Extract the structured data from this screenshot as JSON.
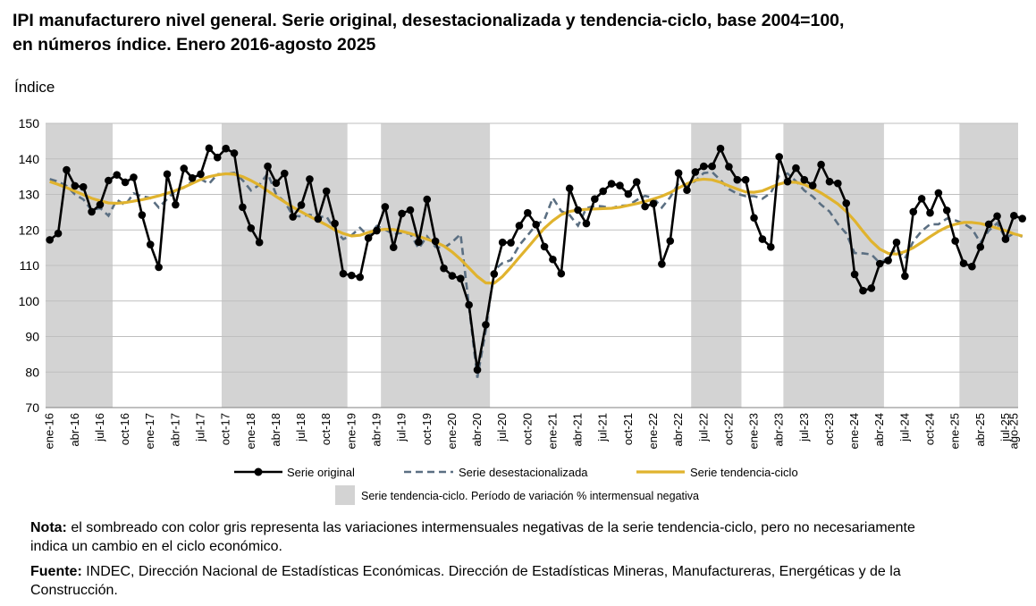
{
  "title": {
    "line1": "IPI manufacturero nivel general. Serie original, desestacionalizada y tendencia-ciclo, base 2004=100,",
    "line2": "en números índice. Enero 2016-agosto 2025"
  },
  "note": {
    "label": "Nota:",
    "text": " el sombreado con color gris representa las variaciones intermensuales negativas de la serie tendencia-ciclo, pero no necesariamente indica un cambio en el ciclo económico."
  },
  "source": {
    "label": "Fuente:",
    "text": " INDEC, Dirección Nacional de Estadísticas Económicas. Dirección de Estadísticas Mineras, Manufactureras, Energéticas y de la Construcción."
  },
  "chart_data": {
    "type": "line",
    "ylabel": "Índice",
    "ylim": [
      70,
      150
    ],
    "yticks": [
      70,
      80,
      90,
      100,
      110,
      120,
      130,
      140,
      150
    ],
    "grid": true,
    "legend_position": "bottom",
    "n_months": 116,
    "xtick_labels": [
      "ene-16",
      "abr-16",
      "jul-16",
      "oct-16",
      "ene-17",
      "abr-17",
      "jul-17",
      "oct-17",
      "ene-18",
      "abr-18",
      "jul-18",
      "oct-18",
      "ene-19",
      "abr-19",
      "jul-19",
      "oct-19",
      "ene-20",
      "abr-20",
      "jul-20",
      "oct-20",
      "ene-21",
      "abr-21",
      "jul-21",
      "oct-21",
      "ene-22",
      "abr-22",
      "jul-22",
      "oct-22",
      "ene-23",
      "abr-23",
      "jul-23",
      "oct-23",
      "ene-24",
      "abr-24",
      "jul-24",
      "oct-24",
      "ene-25",
      "abr-25",
      "jul-25",
      "ago-25"
    ],
    "xtick_index": [
      0,
      3,
      6,
      9,
      12,
      15,
      18,
      21,
      24,
      27,
      30,
      33,
      36,
      39,
      42,
      45,
      48,
      51,
      54,
      57,
      60,
      63,
      66,
      69,
      72,
      75,
      78,
      81,
      84,
      87,
      90,
      93,
      96,
      99,
      102,
      105,
      108,
      111,
      114,
      115
    ],
    "shaded_periods": [
      [
        0,
        7
      ],
      [
        21,
        35
      ],
      [
        40,
        52
      ],
      [
        77,
        82
      ],
      [
        88,
        99
      ],
      [
        109,
        115
      ]
    ],
    "series": [
      {
        "name": "Serie original",
        "color": "#000000",
        "style": "solid-markers",
        "values": [
          117.2,
          119.0,
          136.9,
          132.4,
          132.1,
          125.1,
          127.1,
          133.9,
          135.5,
          133.4,
          134.8,
          124.2,
          115.9,
          109.5,
          135.7,
          127.1,
          137.3,
          134.6,
          135.7,
          143.0,
          140.4,
          142.9,
          141.6,
          126.4,
          120.5,
          116.5,
          137.9,
          133.2,
          135.9,
          123.7,
          127.0,
          134.3,
          123.1,
          130.9,
          121.8,
          107.7,
          107.2,
          106.7,
          117.7,
          119.8,
          126.5,
          115.1,
          124.6,
          125.6,
          116.6,
          128.6,
          116.8,
          109.2,
          107.1,
          106.3,
          98.9,
          80.6,
          93.3,
          107.6,
          116.5,
          116.4,
          121.2,
          124.8,
          121.5,
          115.3,
          111.7,
          107.7,
          131.7,
          125.6,
          121.8,
          128.7,
          130.9,
          133.0,
          132.5,
          130.1,
          133.5,
          126.6,
          127.4,
          110.4,
          116.9,
          136.0,
          131.2,
          136.3,
          137.9,
          137.9,
          142.9,
          137.8,
          134.1,
          134.1,
          123.4,
          117.4,
          115.2,
          140.6,
          133.6,
          137.4,
          134.1,
          132.5,
          138.4,
          133.6,
          133.1,
          127.5,
          107.5,
          102.9,
          103.6,
          110.5,
          111.4,
          116.5,
          107.0,
          125.1,
          128.8,
          124.8,
          130.4,
          125.5,
          116.9,
          110.6,
          109.7,
          115.2,
          121.6,
          123.9,
          117.4,
          124.0,
          123.2
        ]
      },
      {
        "name": "Serie desestacionalizada",
        "color": "#5b6f82",
        "style": "dashed",
        "values": [
          134.3,
          133.6,
          132.4,
          130.0,
          128.6,
          125.5,
          126.2,
          124.0,
          128.5,
          127.0,
          130.3,
          129.5,
          129.0,
          126.3,
          128.7,
          131.1,
          131.9,
          133.7,
          134.3,
          133.0,
          135.7,
          135.7,
          136.1,
          134.0,
          131.1,
          132.7,
          135.9,
          130.0,
          128.0,
          124.0,
          123.8,
          124.3,
          123.6,
          123.8,
          120.0,
          117.4,
          118.5,
          120.6,
          118.2,
          121.1,
          120.1,
          118.8,
          119.2,
          118.9,
          114.8,
          118.2,
          115.2,
          114.9,
          116.6,
          118.8,
          98.5,
          78.4,
          91.7,
          108.7,
          110.7,
          111.5,
          115.7,
          118.5,
          121.4,
          122.9,
          129.0,
          125.3,
          124.2,
          121.2,
          126.1,
          126.8,
          126.6,
          126.1,
          126.8,
          126.9,
          128.4,
          129.6,
          129.0,
          126.3,
          129.2,
          133.2,
          132.5,
          133.8,
          136.0,
          136.3,
          134.0,
          131.5,
          130.2,
          129.5,
          129.5,
          128.8,
          130.4,
          135.2,
          135.9,
          133.7,
          131.1,
          129.4,
          127.1,
          125.2,
          121.7,
          119.0,
          113.5,
          113.4,
          113.1,
          110.7,
          112.1,
          114.9,
          112.0,
          116.8,
          119.7,
          121.6,
          121.6,
          123.2,
          122.7,
          121.8,
          120.3,
          116.4,
          119.8,
          121.9,
          117.6,
          119.1,
          118.1
        ]
      },
      {
        "name": "Serie tendencia-ciclo",
        "color": "#e0b32e",
        "style": "solid-thick",
        "values": [
          133.6,
          132.8,
          131.9,
          130.9,
          129.9,
          128.9,
          128.2,
          127.6,
          127.5,
          127.7,
          128.1,
          128.5,
          129.0,
          129.6,
          130.3,
          131.1,
          132.0,
          133.1,
          134.2,
          135.0,
          135.5,
          135.8,
          135.7,
          135.0,
          133.9,
          132.6,
          131.0,
          129.4,
          127.9,
          126.4,
          125.1,
          123.8,
          122.6,
          121.4,
          120.0,
          119.0,
          118.3,
          118.5,
          119.3,
          119.9,
          120.2,
          120.1,
          119.6,
          119.0,
          118.2,
          117.4,
          116.6,
          115.5,
          113.8,
          111.7,
          109.3,
          106.9,
          105.1,
          105.0,
          106.9,
          109.5,
          112.3,
          115.0,
          117.8,
          120.5,
          122.6,
          124.3,
          125.2,
          125.6,
          125.8,
          125.9,
          126.0,
          126.1,
          126.4,
          126.9,
          127.4,
          128.0,
          128.7,
          129.5,
          130.5,
          131.8,
          133.0,
          134.0,
          134.3,
          134.1,
          133.4,
          132.4,
          131.5,
          130.7,
          130.6,
          131.0,
          132.0,
          132.9,
          133.5,
          133.4,
          132.8,
          131.7,
          130.4,
          128.9,
          127.3,
          125.2,
          122.6,
          119.6,
          116.8,
          114.6,
          113.4,
          113.2,
          113.9,
          115.0,
          116.5,
          118.1,
          119.6,
          120.8,
          121.6,
          122.1,
          122.1,
          121.8,
          121.2,
          120.5,
          119.8,
          118.9,
          118.3
        ]
      }
    ],
    "shading_legend": {
      "label": "Serie tendencia-ciclo. Período de variación % intermensual negativa",
      "color": "#d3d3d3"
    }
  }
}
